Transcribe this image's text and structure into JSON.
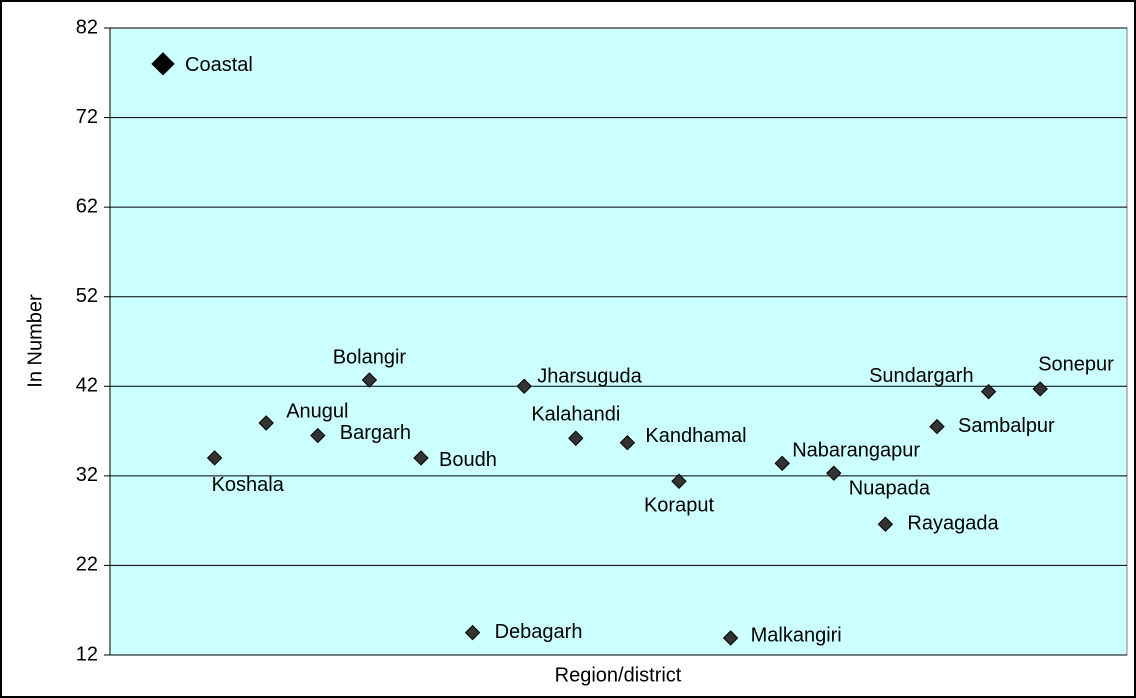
{
  "chart_data": {
    "type": "scatter",
    "y_label": "In Number",
    "x_label": "Region/district",
    "categories": [
      "Coastal",
      "Koshala",
      "Anugul",
      "Bargarh",
      "Bolangir",
      "Boudh",
      "Debagarh",
      "Jharsuguda",
      "Kalahandi",
      "Kandhamal",
      "Koraput",
      "Malkangiri",
      "Nabarangapur",
      "Nuapada",
      "Rayagada",
      "Sambalpur",
      "Sundargarh",
      "Sonepur"
    ],
    "values": [
      78.0,
      34.0,
      37.9,
      36.5,
      42.7,
      34.0,
      14.5,
      42.0,
      36.2,
      35.7,
      31.4,
      13.9,
      33.4,
      32.3,
      26.6,
      37.5,
      41.4,
      41.7
    ],
    "color": "#333333",
    "background": "#ccffff",
    "ylim": [
      12,
      82
    ],
    "yticks": [
      12,
      22,
      32,
      42,
      52,
      62,
      72,
      82
    ],
    "grid": true
  }
}
